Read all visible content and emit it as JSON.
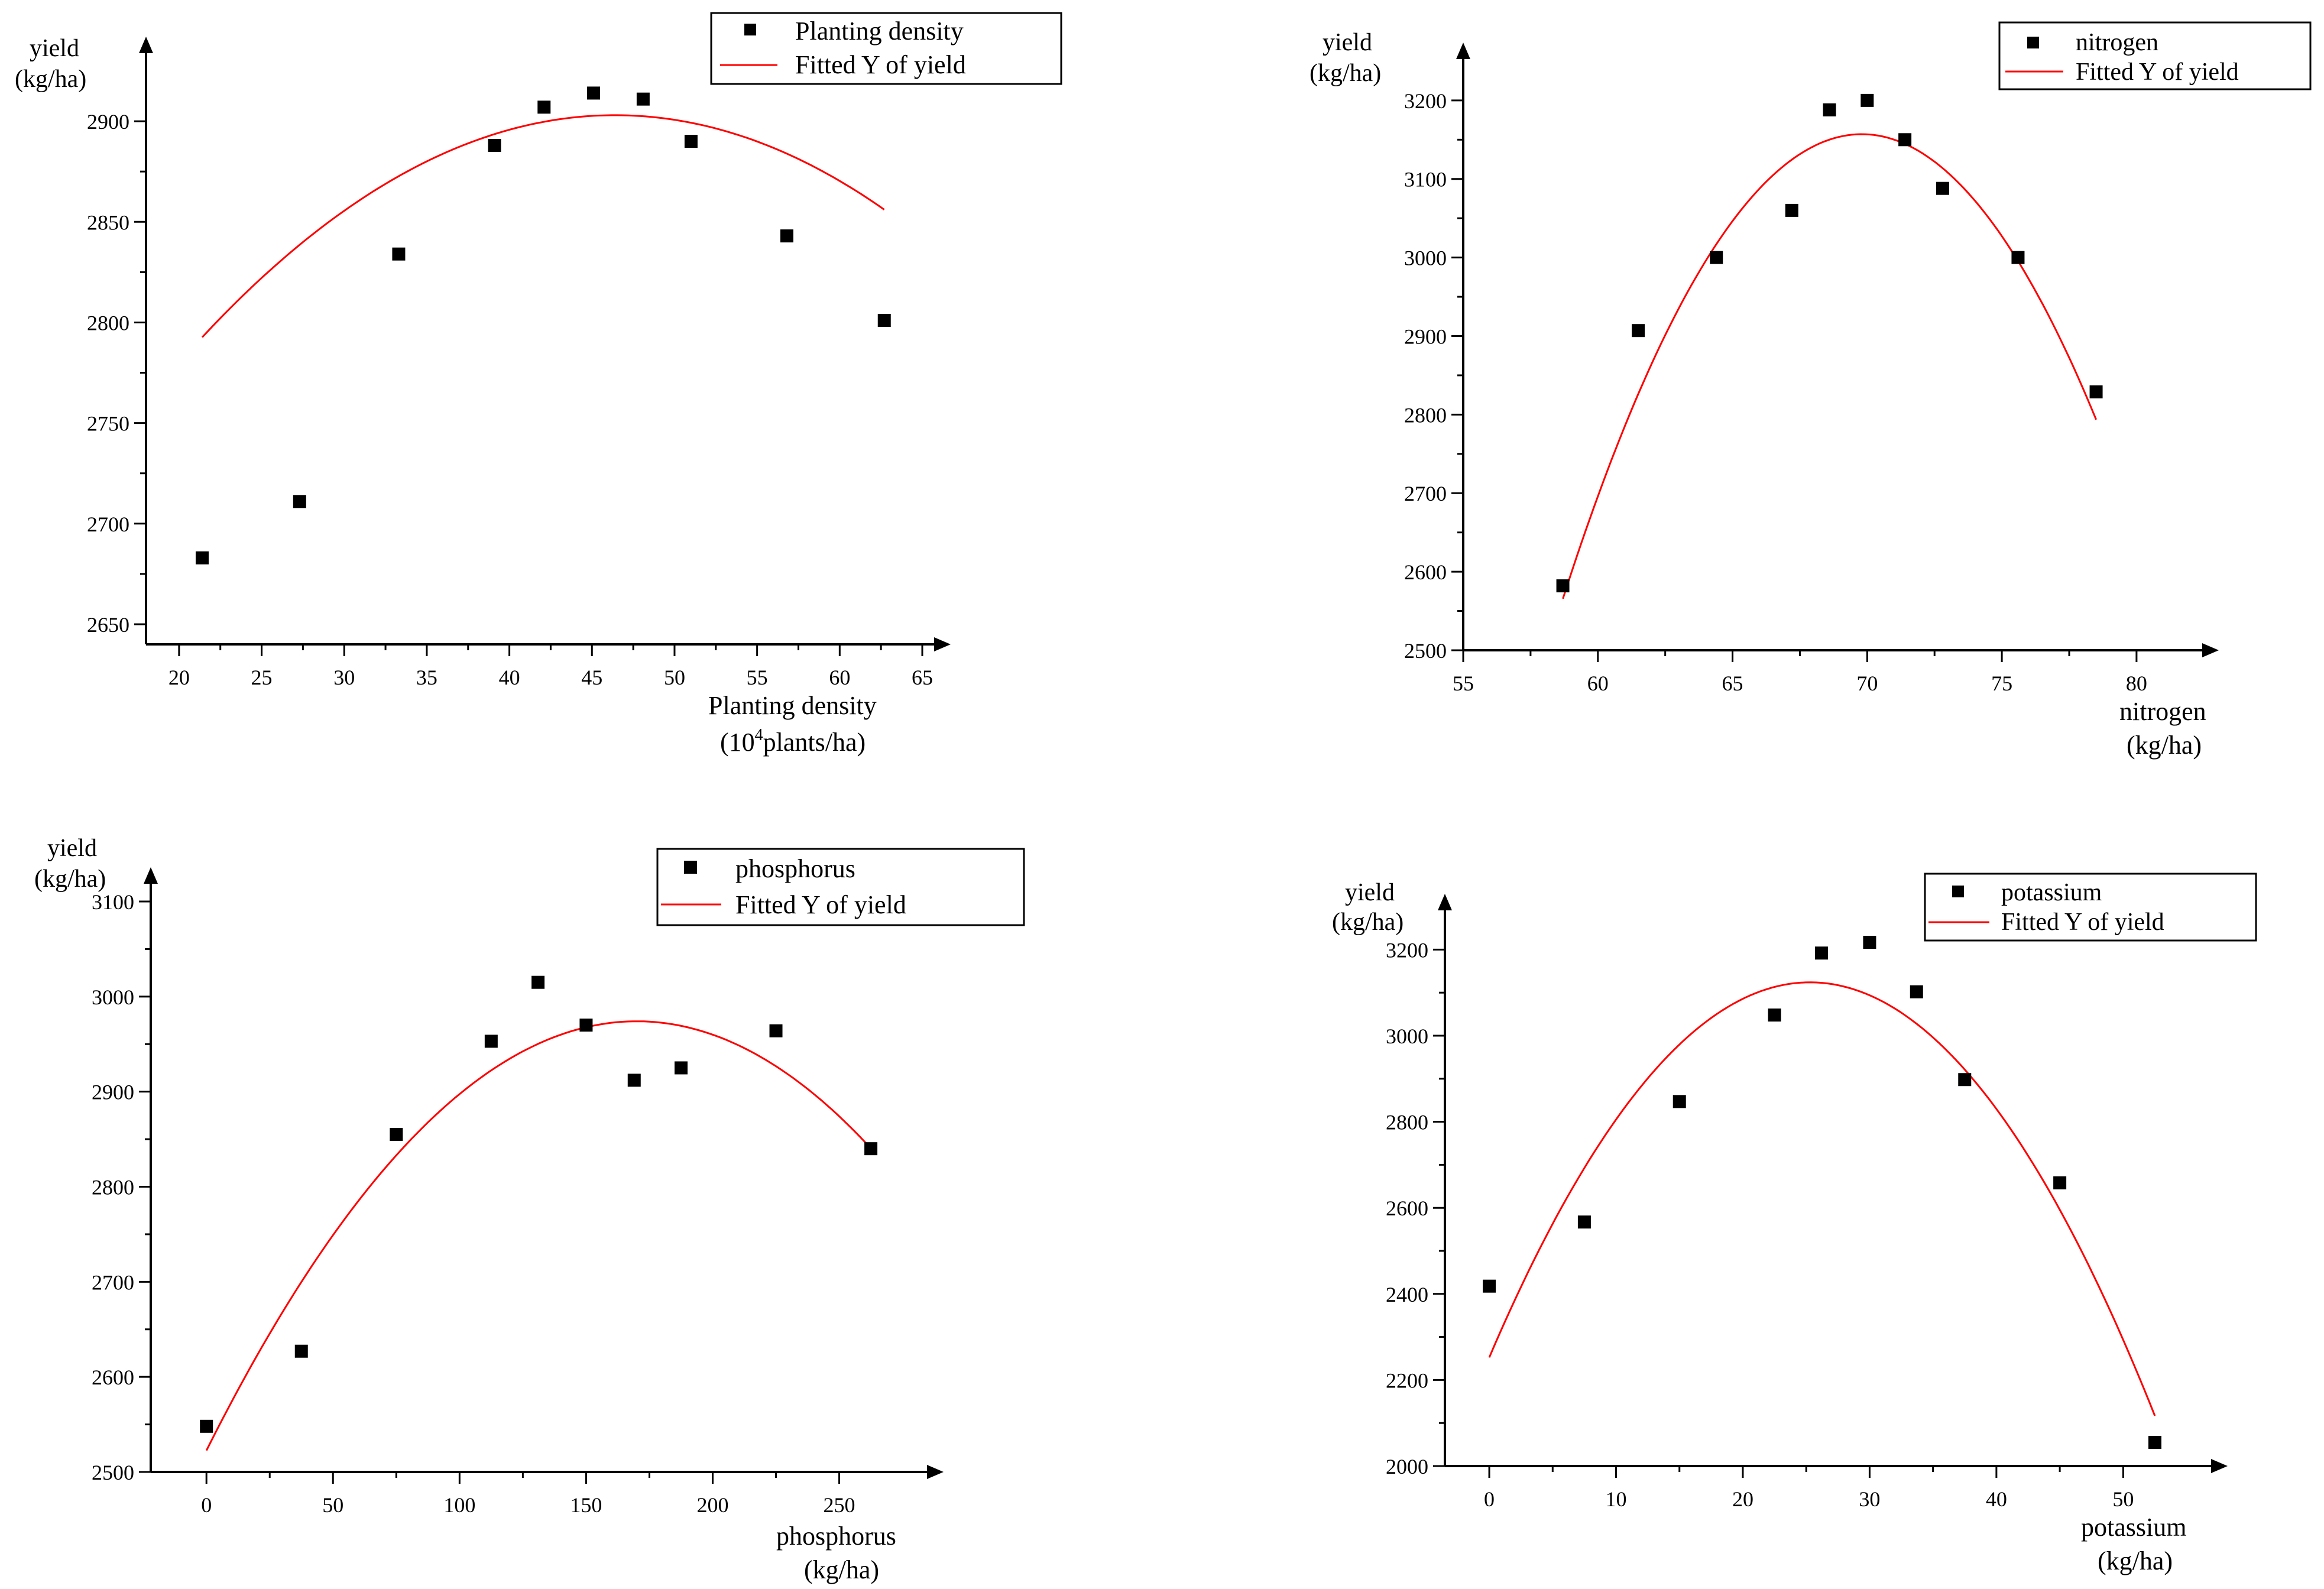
{
  "chart_data": [
    {
      "id": "density",
      "type": "scatter",
      "ylabel": [
        "yield",
        "(kg/ha)"
      ],
      "xlabel": [
        "Planting density",
        "(10",
        "4",
        "plants/ha)"
      ],
      "xlim": [
        18,
        65
      ],
      "ylim": [
        2640,
        2925
      ],
      "xticks": [
        20,
        25,
        30,
        35,
        40,
        45,
        50,
        55,
        60,
        65
      ],
      "yticks": [
        2650,
        2700,
        2750,
        2800,
        2850,
        2900
      ],
      "legend": {
        "scatter": "Planting density",
        "line": "Fitted Y of yield",
        "position": "top-right"
      },
      "series": [
        {
          "name": "Planting density",
          "x": [
            21.4,
            27.3,
            33.3,
            39.1,
            42.1,
            45.1,
            48.1,
            51.0,
            56.8,
            62.7
          ],
          "y": [
            2683,
            2711,
            2834,
            2888,
            2907,
            2914,
            2911,
            2890,
            2843,
            2801
          ]
        }
      ],
      "fit": {
        "name": "Fitted Y of yield",
        "a": -0.1766,
        "h": 46.4,
        "k": 2903,
        "xrange": [
          21.4,
          62.7
        ]
      },
      "colors": {
        "points": "#000000",
        "fit": "#ff0000"
      }
    },
    {
      "id": "nitrogen",
      "type": "scatter",
      "ylabel": [
        "yield",
        "(kg/ha)"
      ],
      "xlabel": [
        "nitrogen",
        "(kg/ha)"
      ],
      "xlim": [
        55,
        82
      ],
      "ylim": [
        2500,
        3230
      ],
      "xticks": [
        55,
        60,
        65,
        70,
        75,
        80
      ],
      "yticks": [
        2500,
        2600,
        2700,
        2800,
        2900,
        3000,
        3100,
        3200
      ],
      "legend": {
        "scatter": "nitrogen",
        "line": "Fitted Y of yield",
        "position": "top-right"
      },
      "series": [
        {
          "name": "nitrogen",
          "x": [
            58.7,
            61.5,
            64.4,
            67.2,
            68.6,
            70.0,
            71.4,
            72.8,
            75.6,
            78.5
          ],
          "y": [
            2582,
            2907,
            3000,
            3060,
            3188,
            3200,
            3150,
            3088,
            3000,
            2829
          ]
        }
      ],
      "fit": {
        "name": "Fitted Y of yield",
        "a": -4.8,
        "h": 69.8,
        "k": 3157,
        "xrange": [
          58.7,
          78.5
        ]
      },
      "colors": {
        "points": "#000000",
        "fit": "#ff0000"
      }
    },
    {
      "id": "phosphorus",
      "type": "scatter",
      "ylabel": [
        "yield",
        "(kg/ha)"
      ],
      "xlabel": [
        "phosphorus",
        "(kg/ha)"
      ],
      "xlim": [
        -22,
        280
      ],
      "ylim": [
        2500,
        3100
      ],
      "xticks": [
        0,
        50,
        100,
        150,
        200,
        250
      ],
      "yticks": [
        2500,
        2600,
        2700,
        2800,
        2900,
        3000,
        3100
      ],
      "legend": {
        "scatter": "phosphorus",
        "line": "Fitted Y of yield",
        "position": "top-right"
      },
      "series": [
        {
          "name": "phosphorus",
          "x": [
            0,
            37.5,
            75,
            112.5,
            131,
            150,
            169,
            187.5,
            225,
            262.5
          ],
          "y": [
            2548,
            2627,
            2855,
            2953,
            3015,
            2970,
            2912,
            2925,
            2964,
            2840
          ]
        }
      ],
      "fit": {
        "name": "Fitted Y of yield",
        "a": -0.01562,
        "h": 170,
        "k": 2974,
        "xrange": [
          0,
          262.5
        ]
      },
      "colors": {
        "points": "#000000",
        "fit": "#ff0000"
      }
    },
    {
      "id": "potassium",
      "type": "scatter",
      "ylabel": [
        "yield",
        "(kg/ha)"
      ],
      "xlabel": [
        "potassium",
        "(kg/ha)"
      ],
      "xlim": [
        -3.5,
        56
      ],
      "ylim": [
        2000,
        3250
      ],
      "xticks": [
        0,
        10,
        20,
        30,
        40,
        50
      ],
      "yticks": [
        2000,
        2200,
        2400,
        2600,
        2800,
        3000,
        3200
      ],
      "legend": {
        "scatter": "potassium",
        "line": "Fitted Y of yield",
        "position": "top-right"
      },
      "series": [
        {
          "name": "potassium",
          "x": [
            0,
            7.5,
            15,
            22.5,
            26.2,
            30,
            33.7,
            37.5,
            45,
            52.5
          ],
          "y": [
            2418,
            2567,
            2847,
            3048,
            3192,
            3217,
            3102,
            2898,
            2658,
            2055
          ]
        }
      ],
      "fit": {
        "name": "Fitted Y of yield",
        "a": -1.3617,
        "h": 25.3,
        "k": 3124,
        "xrange": [
          0,
          52.5
        ]
      },
      "colors": {
        "points": "#000000",
        "fit": "#ff0000"
      }
    }
  ]
}
